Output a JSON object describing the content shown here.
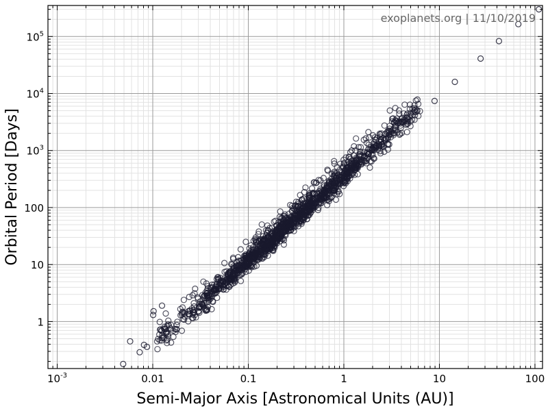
{
  "chart_data": {
    "type": "scatter",
    "watermark": "exoplanets.org | 11/10/2019",
    "xlabel": "Semi-Major Axis [Astronomical Units (AU)]",
    "ylabel": "Orbital Period [Days]",
    "x_scale": "log",
    "y_scale": "log",
    "xlim": [
      0.0008,
      120
    ],
    "ylim": [
      0.15,
      350000
    ],
    "grid": true,
    "x_ticks": [
      {
        "value": 0.001,
        "base": "10",
        "exp": "-3"
      },
      {
        "value": 0.01,
        "label": "0.01"
      },
      {
        "value": 0.1,
        "label": "0.1"
      },
      {
        "value": 1,
        "label": "1"
      },
      {
        "value": 10,
        "label": "10"
      },
      {
        "value": 100,
        "label": "100"
      }
    ],
    "y_ticks": [
      {
        "value": 1,
        "label": "1"
      },
      {
        "value": 10,
        "label": "10"
      },
      {
        "value": 100,
        "label": "100"
      },
      {
        "value": 1000,
        "base": "10",
        "exp": "3"
      },
      {
        "value": 10000,
        "base": "10",
        "exp": "4"
      },
      {
        "value": 100000,
        "base": "10",
        "exp": "5"
      }
    ],
    "marker_color": "#1a1a2e",
    "series": [
      {
        "outliers": [
          {
            "x": 0.0049,
            "y": 0.18
          },
          {
            "x": 0.0058,
            "y": 0.45
          },
          {
            "x": 0.0073,
            "y": 0.29
          },
          {
            "x": 0.0081,
            "y": 0.39
          },
          {
            "x": 0.0087,
            "y": 0.36
          },
          {
            "x": 0.0101,
            "y": 1.3
          },
          {
            "x": 0.0102,
            "y": 1.52
          },
          {
            "x": 0.0125,
            "y": 1.9
          },
          {
            "x": 0.0124,
            "y": 0.7
          },
          {
            "x": 8.9,
            "y": 7400
          },
          {
            "x": 14.5,
            "y": 16000
          },
          {
            "x": 27,
            "y": 41000
          },
          {
            "x": 42,
            "y": 83000
          },
          {
            "x": 67,
            "y": 165000
          },
          {
            "x": 110,
            "y": 300000
          }
        ],
        "trend": {
          "points": 1600,
          "x_range": [
            0.011,
            6.5
          ],
          "scatter_dex": 0.09
        }
      }
    ]
  }
}
